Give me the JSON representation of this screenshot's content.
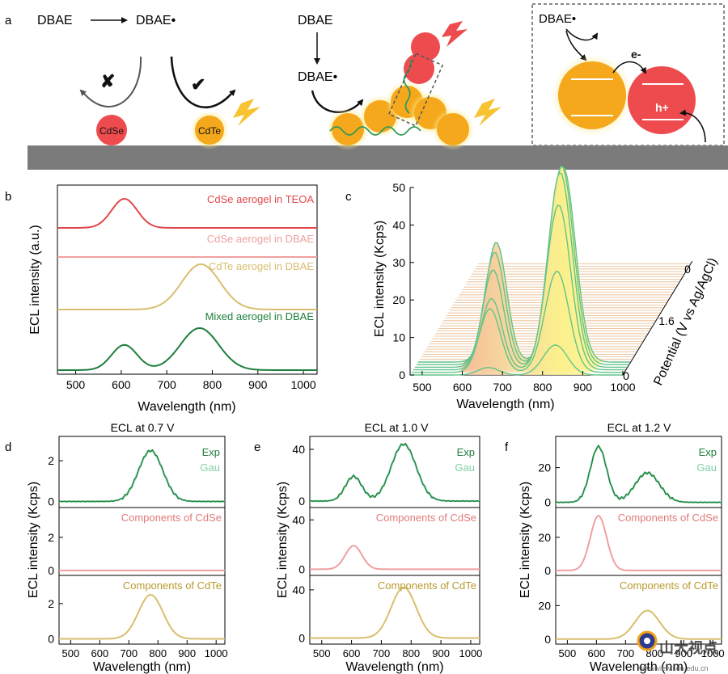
{
  "panel_letters": [
    "a",
    "b",
    "c",
    "d",
    "e",
    "f"
  ],
  "schematic": {
    "top_left_left": "DBAE",
    "top_left_right": "DBAE•",
    "nanoparticle_1": "CdSe",
    "nanoparticle_2": "CdTe",
    "cross_mark": "✘",
    "check_mark": "✔",
    "mid_top": "DBAE",
    "mid_radical": "DBAE•",
    "right_radical": "DBAE•",
    "electron_label": "e-",
    "hole_label": "h+",
    "colors": {
      "cdse": "#ee4b4e",
      "cdte": "#f5a81c",
      "substrate": "#7b7b7b",
      "glow": "#fbe98a"
    }
  },
  "chart_data": [
    {
      "id": "b",
      "type": "line",
      "xlabel": "Wavelength (nm)",
      "ylabel": "ECL intensity (a.u.)",
      "xlim": [
        460,
        1030
      ],
      "xticks": [
        500,
        600,
        700,
        800,
        900,
        1000
      ],
      "series": [
        {
          "name": "CdSe aerogel in TEOA",
          "color": "#e0484b",
          "peaks": [
            [
              607,
              1.0
            ]
          ]
        },
        {
          "name": "CdSe aerogel in DBAE",
          "color": "#f0a0a0",
          "peaks": []
        },
        {
          "name": "CdTe aerogel in DBAE",
          "color": "#d8be6e",
          "peaks": [
            [
              775,
              1.0
            ]
          ]
        },
        {
          "name": "Mixed aerogel in DBAE",
          "color": "#1e7f3c",
          "peaks": [
            [
              607,
              0.6
            ],
            [
              772,
              1.0
            ]
          ]
        }
      ]
    },
    {
      "id": "c",
      "type": "area",
      "xlabel": "Wavelength (nm)",
      "ylabel": "ECL intensity (Kcps)",
      "zlabel": "Potential (V vs Ag/AgCl)",
      "xlim": [
        470,
        1000
      ],
      "ylim": [
        0,
        50
      ],
      "xticks": [
        500,
        600,
        700,
        800,
        900,
        1000
      ],
      "yticks": [
        0,
        10,
        20,
        30,
        40,
        50
      ],
      "zticks": [
        "0",
        "1.6",
        "0"
      ],
      "front_spectra": [
        {
          "cdse": 2,
          "cdte": 8
        },
        {
          "cdse": 17,
          "cdte": 27
        },
        {
          "cdse": 19,
          "cdte": 44
        },
        {
          "cdse": 26,
          "cdte": 52
        },
        {
          "cdse": 30,
          "cdte": 53
        },
        {
          "cdse": 32,
          "cdte": 52
        }
      ]
    },
    {
      "id": "d",
      "type": "line",
      "title": "ECL at 0.7 V",
      "xlabel": "Wavelength (nm)",
      "ylabel": "ECL intensity (Kcps)",
      "xlim": [
        460,
        1030
      ],
      "xticks": [
        500,
        600,
        700,
        800,
        900,
        1000
      ],
      "legend": [
        "Exp",
        "Gau"
      ],
      "rows": [
        {
          "label": "",
          "ylim": [
            -0.3,
            3.2
          ],
          "yticks": [
            0,
            2
          ],
          "cdse": 0,
          "cdte": 2.5,
          "combined": true
        },
        {
          "label": "Components of CdSe",
          "ylim": [
            -0.3,
            3.8
          ],
          "yticks": [
            0,
            2
          ],
          "cdse": 0,
          "cdte": 0
        },
        {
          "label": "Components of CdTe",
          "ylim": [
            -0.3,
            3.6
          ],
          "yticks": [
            0,
            2
          ],
          "cdse": 0,
          "cdte": 2.5
        }
      ]
    },
    {
      "id": "e",
      "type": "line",
      "title": "ECL at 1.0 V",
      "xlabel": "Wavelength (nm)",
      "ylabel": "ECL intensity (Kcps)",
      "xlim": [
        460,
        1030
      ],
      "xticks": [
        500,
        600,
        700,
        800,
        900,
        1000
      ],
      "legend": [
        "Exp",
        "Gau"
      ],
      "rows": [
        {
          "label": "",
          "ylim": [
            -5,
            50
          ],
          "yticks": [
            0,
            40
          ],
          "cdse": 19,
          "cdte": 44,
          "combined": true
        },
        {
          "label": "Components of CdSe",
          "ylim": [
            -5,
            50
          ],
          "yticks": [
            0,
            40
          ],
          "cdse": 19,
          "cdte": 0
        },
        {
          "label": "Components of CdTe",
          "ylim": [
            -5,
            52
          ],
          "yticks": [
            0,
            40
          ],
          "cdse": 0,
          "cdte": 42
        }
      ]
    },
    {
      "id": "f",
      "type": "line",
      "title": "ECL at 1.2 V",
      "xlabel": "Wavelength (nm)",
      "ylabel": "ECL intensity (Kcps)",
      "xlim": [
        460,
        1030
      ],
      "xticks": [
        500,
        600,
        700,
        800,
        900,
        1000
      ],
      "legend": [
        "Exp",
        "Gau"
      ],
      "rows": [
        {
          "label": "",
          "ylim": [
            -3,
            38
          ],
          "yticks": [
            0,
            20
          ],
          "cdse": 32,
          "cdte": 17,
          "combined": true
        },
        {
          "label": "Components of CdSe",
          "ylim": [
            -3,
            38
          ],
          "yticks": [
            0,
            20
          ],
          "cdse": 33,
          "cdte": 0
        },
        {
          "label": "Components of CdTe",
          "ylim": [
            -3,
            38
          ],
          "yticks": [
            0,
            20
          ],
          "cdse": 0,
          "cdte": 17
        }
      ]
    }
  ],
  "watermark": {
    "text": "山大视点",
    "subtext": "www.view.sdu.edu.cn"
  },
  "colors": {
    "exp": "#1e7f3c",
    "gau": "#7fd1a3",
    "cdse_component": "#f0a0a0",
    "cdte_component": "#d8be6e",
    "cdse_label": "#e07a7a",
    "cdte_label": "#b89a2e"
  }
}
